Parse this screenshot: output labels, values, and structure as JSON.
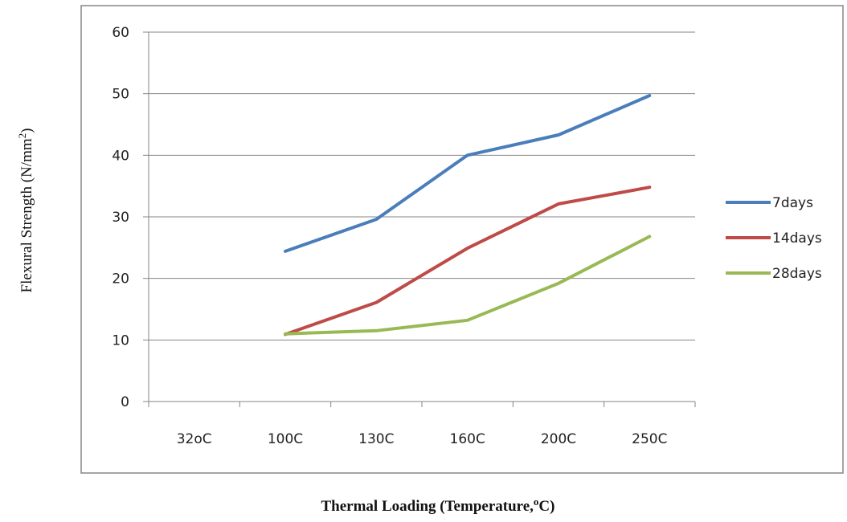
{
  "chart_data": {
    "type": "line",
    "categories": [
      "32oC",
      "100C",
      "130C",
      "160C",
      "200C",
      "250C"
    ],
    "series": [
      {
        "name": "7days",
        "color": "#4a7ebb",
        "values": [
          null,
          24.4,
          29.6,
          40.0,
          43.3,
          49.7
        ]
      },
      {
        "name": "14days",
        "color": "#be4b48",
        "values": [
          null,
          10.9,
          16.1,
          24.9,
          32.1,
          34.8
        ]
      },
      {
        "name": "28days",
        "color": "#98b954",
        "values": [
          null,
          11.0,
          11.5,
          13.2,
          19.2,
          26.8
        ]
      }
    ],
    "ylim": [
      0,
      60
    ],
    "ytick_step": 10,
    "grid": true,
    "legend_position": "right",
    "ylabel": {
      "text": "Flexural Strength  (N/mm",
      "superscript": "2",
      "suffix": ")"
    },
    "xlabel": {
      "text": "Thermal Loading (Temperature,",
      "superscript": "o",
      "suffix": "C)"
    }
  }
}
